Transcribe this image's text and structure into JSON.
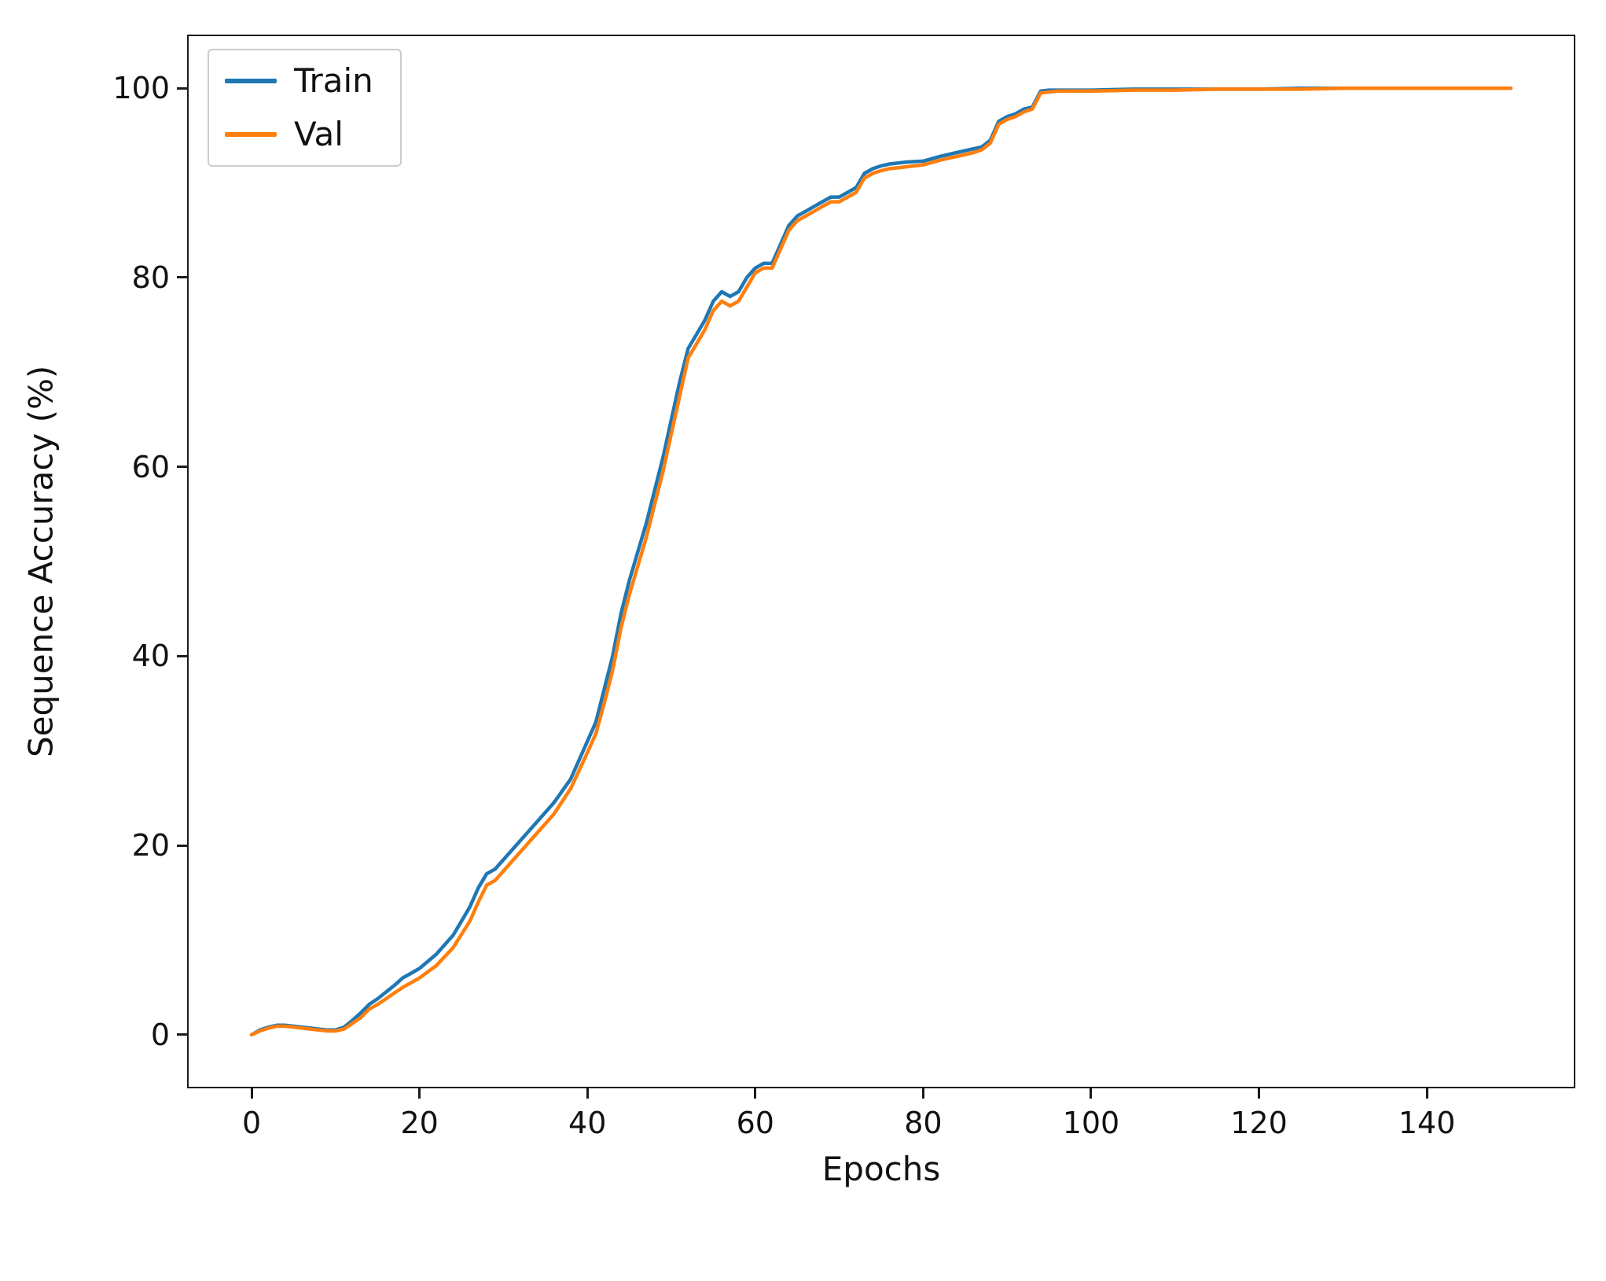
{
  "figure": {
    "background": "#ffffff",
    "axis_color": "#1a1a1a"
  },
  "chart_data": {
    "type": "line",
    "title": "",
    "xlabel": "Epochs",
    "ylabel": "Sequence Accuracy (%)",
    "xlim": [
      -7.5,
      157.5
    ],
    "ylim": [
      -5.5,
      105.5
    ],
    "xticks": [
      0,
      20,
      40,
      60,
      80,
      100,
      120,
      140
    ],
    "yticks": [
      0,
      20,
      40,
      60,
      80,
      100
    ],
    "grid": false,
    "legend_position": "upper-left",
    "x": [
      0,
      1,
      2,
      3,
      4,
      5,
      6,
      7,
      8,
      9,
      10,
      11,
      12,
      13,
      14,
      15,
      16,
      17,
      18,
      19,
      20,
      22,
      24,
      26,
      27,
      28,
      29,
      30,
      31,
      32,
      34,
      36,
      38,
      40,
      41,
      42,
      43,
      44,
      45,
      46,
      47,
      48,
      49,
      50,
      51,
      52,
      53,
      54,
      55,
      56,
      57,
      58,
      59,
      60,
      61,
      62,
      63,
      64,
      65,
      66,
      67,
      68,
      69,
      70,
      71,
      72,
      73,
      74,
      75,
      76,
      78,
      80,
      82,
      84,
      85,
      86,
      87,
      88,
      89,
      90,
      91,
      92,
      93,
      94,
      95,
      96,
      98,
      100,
      105,
      110,
      115,
      120,
      125,
      130,
      135,
      140,
      145,
      150
    ],
    "series": [
      {
        "name": "Train",
        "color": "#1f77b4",
        "values": [
          0.0,
          0.5,
          0.8,
          1.0,
          1.0,
          0.9,
          0.8,
          0.7,
          0.6,
          0.5,
          0.5,
          0.8,
          1.5,
          2.3,
          3.2,
          3.8,
          4.5,
          5.2,
          6.0,
          6.5,
          7.0,
          8.5,
          10.5,
          13.5,
          15.5,
          17.0,
          17.5,
          18.5,
          19.5,
          20.5,
          22.5,
          24.5,
          27.0,
          31.0,
          33.0,
          36.5,
          40.0,
          44.5,
          48.0,
          51.0,
          54.0,
          57.5,
          61.0,
          65.0,
          69.0,
          72.5,
          74.0,
          75.5,
          77.5,
          78.5,
          78.0,
          78.5,
          80.0,
          81.0,
          81.5,
          81.5,
          83.5,
          85.5,
          86.5,
          87.0,
          87.5,
          88.0,
          88.5,
          88.5,
          89.0,
          89.5,
          91.0,
          91.5,
          91.8,
          92.0,
          92.2,
          92.3,
          92.8,
          93.2,
          93.4,
          93.6,
          93.8,
          94.5,
          96.5,
          97.0,
          97.3,
          97.8,
          98.0,
          99.7,
          99.8,
          99.8,
          99.8,
          99.8,
          99.9,
          99.9,
          99.9,
          99.9,
          100.0,
          100.0,
          100.0,
          100.0,
          100.0,
          100.0
        ]
      },
      {
        "name": "Val",
        "color": "#ff7f0e",
        "values": [
          0.0,
          0.4,
          0.7,
          0.9,
          0.9,
          0.8,
          0.7,
          0.6,
          0.5,
          0.4,
          0.4,
          0.6,
          1.2,
          1.8,
          2.7,
          3.2,
          3.8,
          4.4,
          5.0,
          5.5,
          6.0,
          7.3,
          9.2,
          12.0,
          14.0,
          15.8,
          16.3,
          17.3,
          18.3,
          19.3,
          21.3,
          23.3,
          26.0,
          29.8,
          31.8,
          35.0,
          38.5,
          43.0,
          46.5,
          49.5,
          52.5,
          56.0,
          59.5,
          63.5,
          67.5,
          71.5,
          73.0,
          74.5,
          76.5,
          77.5,
          77.0,
          77.5,
          79.0,
          80.5,
          81.0,
          81.0,
          83.0,
          85.0,
          86.0,
          86.5,
          87.0,
          87.5,
          88.0,
          88.0,
          88.5,
          89.0,
          90.5,
          91.0,
          91.3,
          91.5,
          91.7,
          91.9,
          92.4,
          92.8,
          93.0,
          93.2,
          93.5,
          94.2,
          96.2,
          96.7,
          97.0,
          97.5,
          97.8,
          99.5,
          99.6,
          99.7,
          99.7,
          99.7,
          99.8,
          99.8,
          99.9,
          99.9,
          99.9,
          100.0,
          100.0,
          100.0,
          100.0,
          100.0
        ]
      }
    ]
  }
}
